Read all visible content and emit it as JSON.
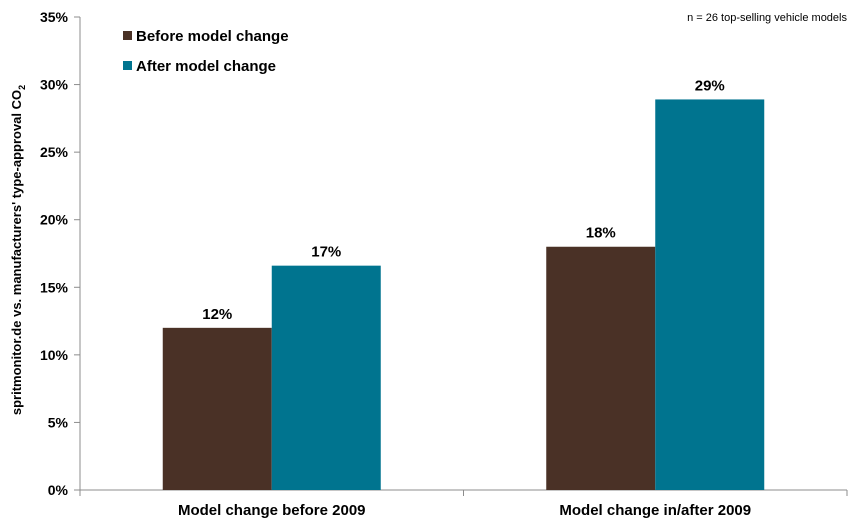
{
  "chart_data": {
    "type": "bar",
    "categories": [
      "Model change before 2009",
      "Model change in/after 2009"
    ],
    "series": [
      {
        "name": "Before model change",
        "values": [
          12,
          18
        ],
        "labels": [
          "12%",
          "18%"
        ],
        "color": "#4a3126"
      },
      {
        "name": "After model change",
        "values": [
          16.6,
          28.9
        ],
        "labels": [
          "17%",
          "29%"
        ],
        "color": "#00748f"
      }
    ],
    "ylabel": "spritmonitor.de vs. manufacturers' type-approval CO",
    "ylabel_subscript": "2",
    "ylim": [
      0,
      35
    ],
    "yticks": [
      "0%",
      "5%",
      "10%",
      "15%",
      "20%",
      "25%",
      "30%",
      "35%"
    ],
    "note": "n = 26 top-selling vehicle models",
    "legend_position": "top-left",
    "grid": false
  }
}
